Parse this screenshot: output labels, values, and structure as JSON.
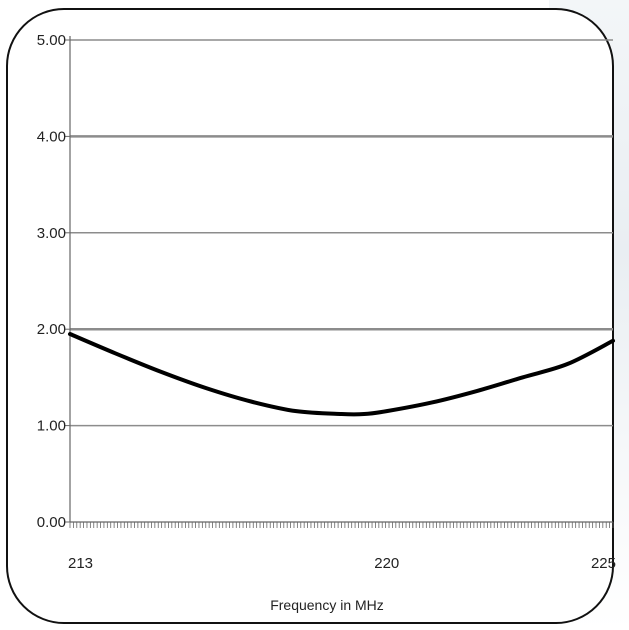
{
  "chart_data": {
    "type": "line",
    "title": "",
    "xlabel": "Frequency in MHz",
    "ylabel": "",
    "xlim": [
      213,
      225
    ],
    "ylim": [
      0,
      5
    ],
    "x_ticks": [
      "213",
      "220",
      "225"
    ],
    "y_ticks": [
      "0.00",
      "1.00",
      "2.00",
      "3.00",
      "4.00",
      "5.00"
    ],
    "grid": true,
    "legend": "none",
    "series": [
      {
        "x": [
          213,
          214,
          215,
          216,
          217,
          218,
          219,
          219.5,
          220,
          221,
          222,
          223,
          224,
          225
        ],
        "y": [
          1.95,
          1.75,
          1.56,
          1.39,
          1.25,
          1.15,
          1.12,
          1.12,
          1.15,
          1.24,
          1.36,
          1.5,
          1.64,
          1.88
        ]
      }
    ]
  },
  "colors": {
    "line": "#000000",
    "grid": "#8c8c8c",
    "axis": "#666666",
    "frame": "#111111"
  }
}
